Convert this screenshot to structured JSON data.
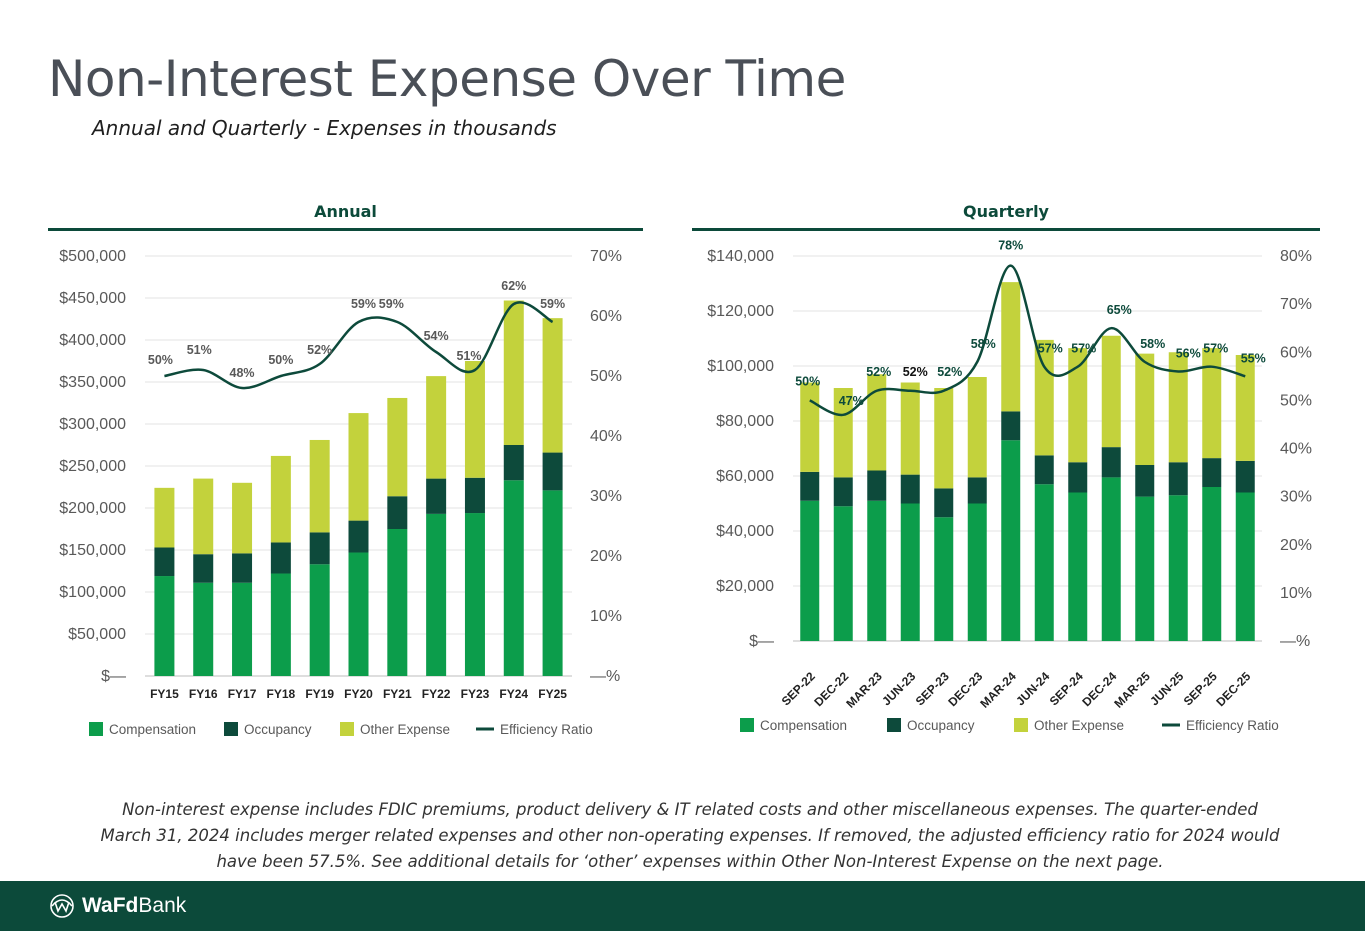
{
  "page": {
    "title": "Non-Interest Expense Over Time",
    "subtitle": "Annual and Quarterly - Expenses in thousands",
    "footnote": "Non-interest expense includes FDIC premiums, product delivery & IT related costs and other miscellaneous expenses.  The quarter-ended March 31, 2024 includes merger related expenses and other non-operating expenses.  If removed, the adjusted efficiency ratio for 2024 would have been 57.5%.  See additional details for ‘other’ expenses within Other Non-Interest Expense on the next page.",
    "logo": {
      "bold": "WaFd",
      "regular": "Bank",
      "icon": "wafd-logo-icon"
    }
  },
  "colors": {
    "compensation": "#0c9d4b",
    "occupancy": "#0d4a3b",
    "other": "#c3d23c",
    "ratio": "#0d4a3b",
    "footer": "#0c4a3a"
  },
  "chart_data": [
    {
      "type": "bar",
      "stacked": true,
      "title": "Annual",
      "categories": [
        "FY15",
        "FY16",
        "FY17",
        "FY18",
        "FY19",
        "FY20",
        "FY21",
        "FY22",
        "FY23",
        "FY24",
        "FY25"
      ],
      "series": [
        {
          "name": "Compensation",
          "values": [
            119000,
            111000,
            111000,
            122000,
            133000,
            147000,
            175000,
            193000,
            194000,
            233000,
            221000
          ]
        },
        {
          "name": "Occupancy",
          "values": [
            34000,
            34000,
            35000,
            37000,
            38000,
            38000,
            39000,
            42000,
            42000,
            42000,
            45000
          ]
        },
        {
          "name": "Other Expense",
          "values": [
            71000,
            90000,
            84000,
            103000,
            110000,
            128000,
            117000,
            122000,
            139000,
            172000,
            160000
          ]
        }
      ],
      "line": {
        "name": "Efficiency Ratio",
        "values": [
          50,
          51,
          48,
          50,
          52,
          59,
          59,
          54,
          51,
          62,
          59
        ],
        "labels": [
          "50%",
          "51%",
          "48%",
          "50%",
          "52%",
          "59%",
          "59%",
          "54%",
          "51%",
          "62%",
          "59%"
        ]
      },
      "y_left": {
        "min": 0,
        "max": 500000,
        "ticks": [
          "$—",
          "$50,000",
          "$100,000",
          "$150,000",
          "$200,000",
          "$250,000",
          "$300,000",
          "$350,000",
          "$400,000",
          "$450,000",
          "$500,000"
        ]
      },
      "y_right": {
        "min": 0,
        "max": 70,
        "ticks": [
          "—%",
          "10%",
          "20%",
          "30%",
          "40%",
          "50%",
          "60%",
          "70%"
        ]
      },
      "legend": {
        "position": "bottom",
        "items": [
          "Compensation",
          "Occupancy",
          "Other Expense",
          "Efficiency Ratio"
        ]
      },
      "grid": true
    },
    {
      "type": "bar",
      "stacked": true,
      "title": "Quarterly",
      "categories": [
        "SEP-22",
        "DEC-22",
        "MAR-23",
        "JUN-23",
        "SEP-23",
        "DEC-23",
        "MAR-24",
        "JUN-24",
        "SEP-24",
        "DEC-24",
        "MAR-25",
        "JUN-25",
        "SEP-25",
        "DEC-25"
      ],
      "series": [
        {
          "name": "Compensation",
          "values": [
            51000,
            49000,
            51000,
            50000,
            45000,
            50000,
            73000,
            57000,
            54000,
            59500,
            52500,
            53000,
            56000,
            54000
          ]
        },
        {
          "name": "Occupancy",
          "values": [
            10500,
            10500,
            11000,
            10500,
            10500,
            9500,
            10500,
            10500,
            11000,
            11000,
            11500,
            12000,
            10500,
            11500
          ]
        },
        {
          "name": "Other Expense",
          "values": [
            32500,
            32500,
            35000,
            33500,
            36500,
            36500,
            47000,
            42000,
            41500,
            40500,
            40500,
            40000,
            40000,
            38500
          ]
        }
      ],
      "line": {
        "name": "Efficiency Ratio",
        "values": [
          50,
          47,
          52,
          52,
          52,
          58,
          78,
          57,
          57,
          65,
          58,
          56,
          57,
          55
        ],
        "labels": [
          "50%",
          "47%",
          "52%",
          "52%",
          "52%",
          "58%",
          "78%",
          "57%",
          "57%",
          "65%",
          "58%",
          "56%",
          "57%",
          "55%"
        ]
      },
      "y_left": {
        "min": 0,
        "max": 140000,
        "ticks": [
          "$—",
          "$20,000",
          "$40,000",
          "$60,000",
          "$80,000",
          "$100,000",
          "$120,000",
          "$140,000"
        ]
      },
      "y_right": {
        "min": 0,
        "max": 80,
        "ticks": [
          "—%",
          "10%",
          "20%",
          "30%",
          "40%",
          "50%",
          "60%",
          "70%",
          "80%"
        ]
      },
      "legend": {
        "position": "bottom",
        "items": [
          "Compensation",
          "Occupancy",
          "Other Expense",
          "Efficiency Ratio"
        ]
      },
      "grid": true
    }
  ]
}
